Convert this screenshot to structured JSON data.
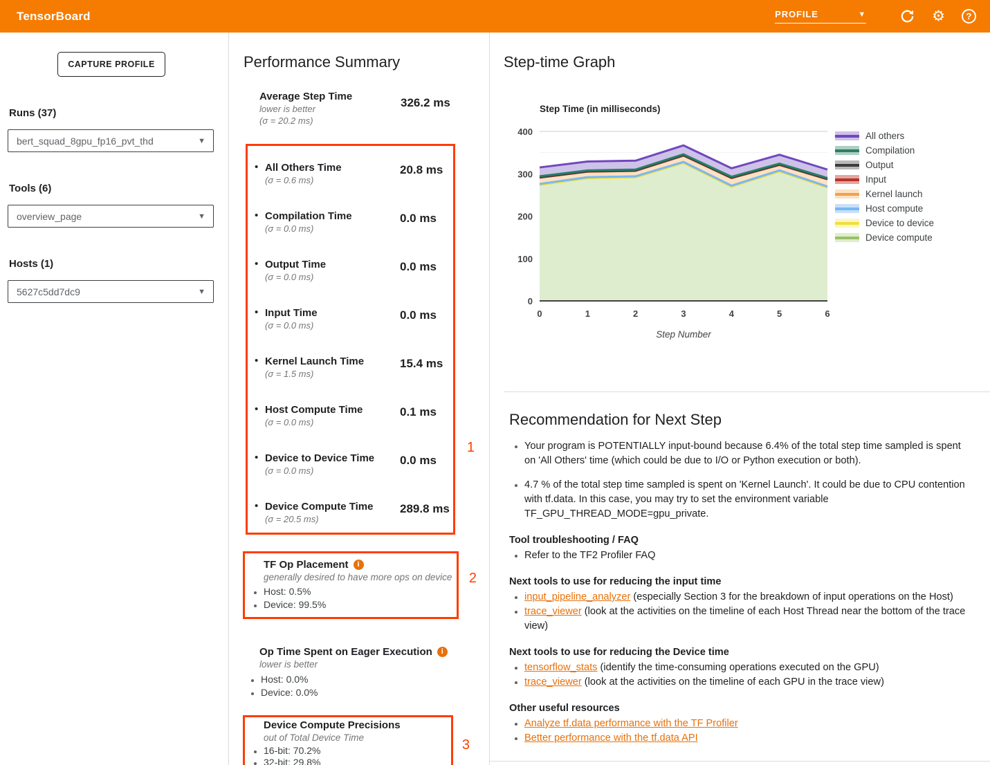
{
  "header": {
    "title": "TensorBoard",
    "nav_selected": "PROFILE"
  },
  "sidebar": {
    "capture_button": "CAPTURE PROFILE",
    "runs_label": "Runs (37)",
    "runs_value": "bert_squad_8gpu_fp16_pvt_thd",
    "tools_label": "Tools (6)",
    "tools_value": "overview_page",
    "hosts_label": "Hosts (1)",
    "hosts_value": "5627c5dd7dc9"
  },
  "performance_summary": {
    "title": "Performance Summary",
    "average": {
      "label": "Average Step Time",
      "sub1": "lower is better",
      "sub2": "(σ = 20.2 ms)",
      "value": "326.2 ms"
    },
    "metrics": [
      {
        "label": "All Others Time",
        "sigma": "(σ = 0.6 ms)",
        "value": "20.8 ms"
      },
      {
        "label": "Compilation Time",
        "sigma": "(σ = 0.0 ms)",
        "value": "0.0 ms"
      },
      {
        "label": "Output Time",
        "sigma": "(σ = 0.0 ms)",
        "value": "0.0 ms"
      },
      {
        "label": "Input Time",
        "sigma": "(σ = 0.0 ms)",
        "value": "0.0 ms"
      },
      {
        "label": "Kernel Launch Time",
        "sigma": "(σ = 1.5 ms)",
        "value": "15.4 ms"
      },
      {
        "label": "Host Compute Time",
        "sigma": "(σ = 0.0 ms)",
        "value": "0.1 ms"
      },
      {
        "label": "Device to Device Time",
        "sigma": "(σ = 0.0 ms)",
        "value": "0.0 ms"
      },
      {
        "label": "Device Compute Time",
        "sigma": "(σ = 20.5 ms)",
        "value": "289.8 ms"
      }
    ],
    "annotation_numbers": [
      "1",
      "2",
      "3"
    ],
    "tf_op_placement": {
      "title": "TF Op Placement",
      "subtitle": "generally desired to have more ops on device",
      "items": [
        "Host: 0.5%",
        "Device: 99.5%"
      ]
    },
    "eager": {
      "title": "Op Time Spent on Eager Execution",
      "subtitle": "lower is better",
      "items": [
        "Host: 0.0%",
        "Device: 0.0%"
      ]
    },
    "precisions": {
      "title": "Device Compute Precisions",
      "subtitle": "out of Total Device Time",
      "items": [
        "16-bit: 70.2%",
        "32-bit: 29.8%"
      ]
    }
  },
  "step_time_graph": {
    "title": "Step-time Graph"
  },
  "chart_data": {
    "type": "area",
    "stacked": true,
    "title": "Step Time (in milliseconds)",
    "xlabel": "Step Number",
    "x": [
      0,
      1,
      2,
      3,
      4,
      5,
      6
    ],
    "ylim": [
      0,
      400
    ],
    "yticks": [
      0,
      100,
      200,
      300,
      400
    ],
    "grid": true,
    "legend_position": "right",
    "series": [
      {
        "name": "Device compute",
        "values": [
          274,
          290,
          292,
          326,
          270,
          306,
          268
        ],
        "color": "#9BC069",
        "fill": "#DFEDCF"
      },
      {
        "name": "Device to device",
        "values": [
          0,
          0,
          0,
          0,
          0,
          0,
          0
        ],
        "color": "#F5DE33",
        "fill": "#FBF6C5"
      },
      {
        "name": "Host compute",
        "values": [
          2,
          2,
          2,
          2,
          2,
          2,
          2
        ],
        "color": "#79B8F0",
        "fill": "#C8E0F8"
      },
      {
        "name": "Kernel launch",
        "values": [
          15,
          13,
          13,
          15,
          18,
          13,
          17
        ],
        "color": "#F5A04C",
        "fill": "#FBE2C4"
      },
      {
        "name": "Input",
        "values": [
          0,
          0,
          0,
          0,
          0,
          0,
          0
        ],
        "color": "#B8332A",
        "fill": "#E3A69F"
      },
      {
        "name": "Output",
        "values": [
          1,
          1,
          1,
          1,
          1,
          1,
          1
        ],
        "color": "#3B3B3B",
        "fill": "#B9B9B9"
      },
      {
        "name": "Compilation",
        "values": [
          2,
          2,
          2,
          2,
          2,
          2,
          2
        ],
        "color": "#287F68",
        "fill": "#AFCEC2"
      },
      {
        "name": "All others",
        "values": [
          21,
          21,
          21,
          21,
          20,
          21,
          20
        ],
        "color": "#7048BE",
        "fill": "#CEC2E8"
      }
    ]
  },
  "recommendation": {
    "title": "Recommendation for Next Step",
    "bullets": [
      "Your program is POTENTIALLY input-bound because 6.4% of the total step time sampled is spent on 'All Others' time (which could be due to I/O or Python execution or both).",
      "4.7 % of the total step time sampled is spent on 'Kernel Launch'. It could be due to CPU contention with tf.data. In this case, you may try to set the environment variable TF_GPU_THREAD_MODE=gpu_private."
    ],
    "sections": [
      {
        "heading": "Tool troubleshooting / FAQ",
        "items": [
          {
            "text": "Refer to the TF2 Profiler FAQ"
          }
        ]
      },
      {
        "heading": "Next tools to use for reducing the input time",
        "items": [
          {
            "link": "input_pipeline_analyzer",
            "text": " (especially Section 3 for the breakdown of input operations on the Host)"
          },
          {
            "link": "trace_viewer",
            "text": " (look at the activities on the timeline of each Host Thread near the bottom of the trace view)"
          }
        ]
      },
      {
        "heading": "Next tools to use for reducing the Device time",
        "items": [
          {
            "link": "tensorflow_stats",
            "text": " (identify the time-consuming operations executed on the GPU)"
          },
          {
            "link": "trace_viewer",
            "text": " (look at the activities on the timeline of each GPU in the trace view)"
          }
        ]
      },
      {
        "heading": "Other useful resources",
        "items": [
          {
            "link": "Analyze tf.data performance with the TF Profiler",
            "text": ""
          },
          {
            "link": "Better performance with the tf.data API",
            "text": ""
          }
        ]
      }
    ]
  },
  "colors": {
    "header_bg": "#F57C00",
    "annotation_box": "#FF3D00",
    "link": "#E8710A",
    "info_icon": "#E8710A"
  }
}
